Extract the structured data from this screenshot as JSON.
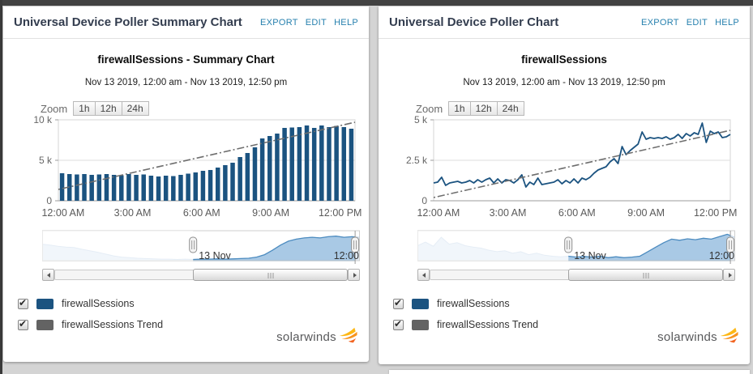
{
  "page": {
    "background_color": "#d4d4d4",
    "top_bar_color": "#424242",
    "link_color": "#2680ae",
    "series_color": "#1b5380",
    "trend_color": "#6e6e6e",
    "navigator_fill": "#a9c9e5",
    "navigator_line": "#4d8cc0"
  },
  "panels": [
    {
      "header": {
        "title": "Universal Device Poller Summary Chart",
        "links": [
          "EXPORT",
          "EDIT",
          "HELP"
        ]
      },
      "chart_title": "firewallSessions - Summary Chart",
      "chart_subtitle": "Nov 13 2019, 12:00 am - Nov 13 2019, 12:50 pm",
      "zoom": {
        "label": "Zoom",
        "buttons": [
          "1h",
          "12h",
          "24h"
        ]
      },
      "navigator": {
        "date_label": "13 Nov",
        "time_label": "12:00",
        "selection_start": 0.475,
        "selection_end": 0.985,
        "profile": [
          0.55,
          0.52,
          0.48,
          0.45,
          0.44,
          0.38,
          0.33,
          0.28,
          0.22,
          0.16,
          0.12,
          0.1,
          0.08,
          0.07,
          0.06,
          0.05,
          0.05,
          0.04,
          0.05,
          0.04,
          0.05,
          0.05,
          0.06,
          0.05,
          0.06,
          0.07,
          0.08,
          0.12,
          0.2,
          0.35,
          0.52,
          0.65,
          0.72,
          0.76,
          0.78,
          0.76,
          0.8,
          0.82,
          0.78,
          0.8,
          0.78
        ]
      },
      "legend": [
        {
          "label": "firewallSessions",
          "color": "#1b5380",
          "checked": true
        },
        {
          "label": "firewallSessions Trend",
          "color": "#636363",
          "checked": true
        }
      ],
      "logo_text": "solarwinds"
    },
    {
      "header": {
        "title": "Universal Device Poller Chart",
        "links": [
          "EXPORT",
          "EDIT",
          "HELP"
        ]
      },
      "chart_title": "firewallSessions",
      "chart_subtitle": "Nov 13 2019, 12:00 am - Nov 13 2019, 12:50 pm",
      "zoom": {
        "label": "Zoom",
        "buttons": [
          "1h",
          "12h",
          "24h"
        ]
      },
      "navigator": {
        "date_label": "13 Nov",
        "time_label": "12:00",
        "selection_start": 0.475,
        "selection_end": 0.985,
        "profile": [
          0.5,
          0.62,
          0.48,
          0.78,
          0.55,
          0.6,
          0.5,
          0.45,
          0.42,
          0.35,
          0.3,
          0.33,
          0.25,
          0.3,
          0.2,
          0.25,
          0.18,
          0.15,
          0.13,
          0.15,
          0.12,
          0.14,
          0.12,
          0.15,
          0.1,
          0.13,
          0.1,
          0.12,
          0.15,
          0.3,
          0.45,
          0.6,
          0.72,
          0.68,
          0.73,
          0.7,
          0.75,
          0.72,
          0.8,
          0.88,
          0.78
        ]
      },
      "legend": [
        {
          "label": "firewallSessions",
          "color": "#1b5380",
          "checked": true
        },
        {
          "label": "firewallSessions Trend",
          "color": "#636363",
          "checked": true
        }
      ],
      "logo_text": "solarwinds"
    }
  ],
  "chart_data": [
    {
      "type": "bar",
      "title": "firewallSessions - Summary Chart",
      "subtitle": "Nov 13 2019, 12:00 am - Nov 13 2019, 12:50 pm",
      "x_ticks": [
        "12:00 AM",
        "3:00 AM",
        "6:00 AM",
        "9:00 AM",
        "12:00 PM"
      ],
      "y_ticks": [
        {
          "label": "10 k",
          "value": 10000
        },
        {
          "label": "5 k",
          "value": 5000
        },
        {
          "label": "0",
          "value": 0
        }
      ],
      "ylim": [
        0,
        10000
      ],
      "grid": true,
      "legend_position": "bottom-left",
      "series": [
        {
          "name": "firewallSessions",
          "render": "bar",
          "color": "#1b5380",
          "values": [
            3400,
            3300,
            3250,
            3300,
            3200,
            3250,
            3300,
            3200,
            3150,
            3300,
            3200,
            3250,
            3100,
            3000,
            3100,
            3050,
            3200,
            3350,
            3500,
            3700,
            3800,
            4100,
            4400,
            4700,
            5400,
            5900,
            6600,
            7700,
            8000,
            8300,
            9000,
            9050,
            9100,
            9300,
            9000,
            9300,
            9100,
            9250,
            9100,
            8900
          ]
        },
        {
          "name": "firewallSessions Trend",
          "render": "trend",
          "color": "#6e6e6e",
          "start": 1400,
          "end": 9700
        }
      ]
    },
    {
      "type": "line",
      "title": "firewallSessions",
      "subtitle": "Nov 13 2019, 12:00 am - Nov 13 2019, 12:50 pm",
      "x_ticks": [
        "12:00 AM",
        "3:00 AM",
        "6:00 AM",
        "9:00 AM",
        "12:00 PM"
      ],
      "y_ticks": [
        {
          "label": "5 k",
          "value": 5000
        },
        {
          "label": "2.5 k",
          "value": 2500
        },
        {
          "label": "0",
          "value": 0
        }
      ],
      "ylim": [
        0,
        5000
      ],
      "grid": true,
      "legend_position": "bottom-left",
      "series": [
        {
          "name": "firewallSessions",
          "render": "line",
          "color": "#1b5380",
          "values": [
            1100,
            1150,
            1450,
            950,
            1100,
            1150,
            1200,
            1100,
            1150,
            1250,
            1100,
            1300,
            1150,
            1300,
            1400,
            1100,
            1350,
            1100,
            1300,
            1250,
            1100,
            1300,
            1600,
            850,
            1150,
            1000,
            1400,
            1000,
            1050,
            1100,
            1150,
            1300,
            1050,
            1250,
            1100,
            1350,
            1100,
            1400,
            1300,
            1450,
            1700,
            1900,
            2000,
            2100,
            2400,
            2600,
            2300,
            3350,
            2850,
            3100,
            3300,
            3500,
            4250,
            3800,
            3900,
            3850,
            3900,
            3850,
            3950,
            3800,
            3900,
            4100,
            3850,
            4150,
            4000,
            4200,
            4100,
            4800,
            3600,
            4300,
            4150,
            4250,
            3900,
            3950,
            4100
          ]
        },
        {
          "name": "firewallSessions Trend",
          "render": "trend",
          "color": "#6e6e6e",
          "start": 200,
          "end": 4350
        }
      ]
    }
  ]
}
